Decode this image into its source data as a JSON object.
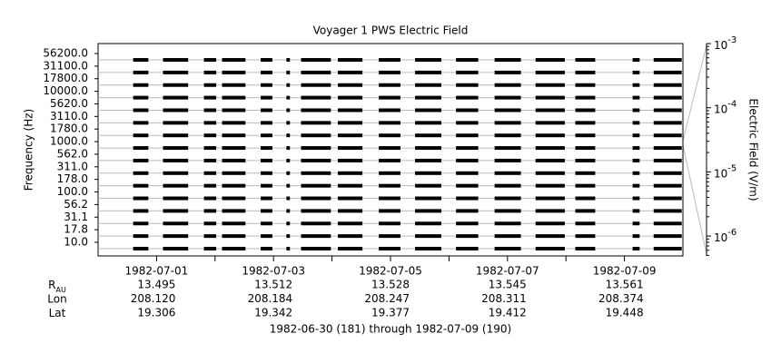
{
  "chart_data": {
    "type": "spectrogram",
    "title": "Voyager 1 PWS Electric Field",
    "ylabel": "Frequency (Hz)",
    "y2label": "Electric Field (V/m)",
    "channels": [
      "10.0",
      "17.8",
      "31.1",
      "56.2",
      "100.0",
      "178.0",
      "311.0",
      "562.0",
      "1000.0",
      "1780.0",
      "3110.0",
      "5620.0",
      "10000.0",
      "17800.0",
      "31100.0",
      "56200.0"
    ],
    "color": "#000000",
    "grid": true,
    "xlim": [
      0,
      10
    ],
    "xticks": [
      {
        "value": 1,
        "label": "1982-07-01"
      },
      {
        "value": 3,
        "label": "1982-07-03"
      },
      {
        "value": 5,
        "label": "1982-07-05"
      },
      {
        "value": 7,
        "label": "1982-07-07"
      },
      {
        "value": 9,
        "label": "1982-07-09"
      }
    ],
    "xminorticks": [
      2,
      4,
      6,
      8
    ],
    "segments": [
      [
        0.6,
        0.86
      ],
      [
        1.11,
        1.54
      ],
      [
        1.81,
        2.02
      ],
      [
        2.12,
        2.52
      ],
      [
        2.78,
        2.98
      ],
      [
        3.22,
        3.28
      ],
      [
        3.47,
        3.98
      ],
      [
        4.1,
        4.52
      ],
      [
        4.8,
        5.17
      ],
      [
        5.42,
        5.87
      ],
      [
        6.12,
        6.5
      ],
      [
        6.78,
        7.23
      ],
      [
        7.48,
        7.98
      ],
      [
        8.16,
        8.5
      ],
      [
        9.14,
        9.26
      ],
      [
        9.5,
        9.98
      ]
    ],
    "y2log": true,
    "y2lim": [
      4.9e-07,
      0.001
    ],
    "y2ticks": [
      {
        "value": 0.001,
        "label": "10",
        "exponent": "-3"
      },
      {
        "value": 0.0001,
        "label": "10",
        "exponent": "-4"
      },
      {
        "value": 1e-05,
        "label": "10",
        "exponent": "-5"
      },
      {
        "value": 1e-06,
        "label": "10",
        "exponent": "-6"
      }
    ],
    "ephemeris": [
      {
        "label": "R",
        "subscript": "AU",
        "values": [
          13.495,
          13.512,
          13.528,
          13.545,
          13.561
        ]
      },
      {
        "label": "Lon",
        "values": [
          208.12,
          208.184,
          208.247,
          208.311,
          208.374
        ],
        "value_labels": [
          "208.120",
          "208.184",
          "208.247",
          "208.311",
          "208.374"
        ]
      },
      {
        "label": "Lat",
        "values": [
          19.306,
          19.342,
          19.377,
          19.412,
          19.448
        ]
      }
    ],
    "footer": "1982-06-30 (181) through 1982-07-09 (190)"
  }
}
